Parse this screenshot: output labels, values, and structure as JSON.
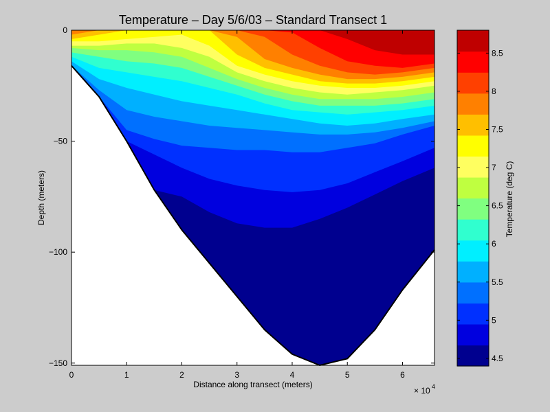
{
  "chart_data": {
    "type": "contour",
    "title": "Temperature – Day 5/6/03 – Standard Transect 1",
    "xlabel": "Distance along transect (meters)",
    "ylabel": "Depth (meters)",
    "x_multiplier_label": "× 10",
    "x_multiplier_exponent": "4",
    "x_tick_labels": [
      "0",
      "1",
      "2",
      "3",
      "4",
      "5",
      "6"
    ],
    "x_tick_values": [
      0,
      10000,
      20000,
      30000,
      40000,
      50000,
      60000
    ],
    "y_tick_labels": [
      "0",
      "−50",
      "−100",
      "−150"
    ],
    "y_tick_values": [
      0,
      -50,
      -100,
      -150
    ],
    "xlim": [
      0,
      65800
    ],
    "ylim": [
      -151,
      0
    ],
    "grid": false,
    "colorbar": {
      "label": "Temperature (deg C)",
      "range": [
        4.4,
        8.8
      ],
      "tick_labels": [
        "4.5",
        "5",
        "5.5",
        "6",
        "6.5",
        "7",
        "7.5",
        "8",
        "8.5"
      ],
      "tick_values": [
        4.5,
        5.0,
        5.5,
        6.0,
        6.5,
        7.0,
        7.5,
        8.0,
        8.5
      ],
      "levels": [
        {
          "min": 4.4,
          "max": 4.675,
          "color": "#00008f"
        },
        {
          "min": 4.675,
          "max": 4.95,
          "color": "#0000df"
        },
        {
          "min": 4.95,
          "max": 5.225,
          "color": "#0030ff"
        },
        {
          "min": 5.225,
          "max": 5.5,
          "color": "#0070ff"
        },
        {
          "min": 5.5,
          "max": 5.775,
          "color": "#00b0ff"
        },
        {
          "min": 5.775,
          "max": 6.05,
          "color": "#00efff"
        },
        {
          "min": 6.05,
          "max": 6.325,
          "color": "#30ffcf"
        },
        {
          "min": 6.325,
          "max": 6.6,
          "color": "#80ff80"
        },
        {
          "min": 6.6,
          "max": 6.875,
          "color": "#bfff40"
        },
        {
          "min": 6.875,
          "max": 7.15,
          "color": "#ffff60"
        },
        {
          "min": 7.15,
          "max": 7.425,
          "color": "#ffff00"
        },
        {
          "min": 7.425,
          "max": 7.7,
          "color": "#ffbf00"
        },
        {
          "min": 7.7,
          "max": 7.975,
          "color": "#ff8000"
        },
        {
          "min": 7.975,
          "max": 8.25,
          "color": "#ff4000"
        },
        {
          "min": 8.25,
          "max": 8.525,
          "color": "#ff0000"
        },
        {
          "min": 8.525,
          "max": 8.8,
          "color": "#bf0000"
        }
      ]
    },
    "bathymetry": {
      "x": [
        0,
        5000,
        10000,
        15000,
        20000,
        25000,
        30000,
        35000,
        40000,
        45000,
        50000,
        55000,
        60000,
        65800
      ],
      "depth": [
        -16,
        -30,
        -50,
        -72,
        -90,
        -105,
        -120,
        -135,
        -146,
        -151,
        -148,
        -135,
        -117,
        -99
      ]
    },
    "isotherm_depths_by_x": {
      "x": [
        0,
        5000,
        10000,
        15000,
        20000,
        25000,
        30000,
        35000,
        40000,
        45000,
        50000,
        55000,
        60000,
        65800
      ],
      "boundaries": [
        {
          "level": 8.525,
          "depth": [
            null,
            null,
            null,
            null,
            null,
            null,
            null,
            null,
            null,
            null,
            -4,
            -9,
            -11,
            -11
          ]
        },
        {
          "level": 8.25,
          "depth": [
            null,
            null,
            null,
            null,
            null,
            null,
            null,
            null,
            -1,
            -8,
            -14,
            -16,
            -17,
            -15
          ]
        },
        {
          "level": 7.975,
          "depth": [
            null,
            null,
            null,
            null,
            null,
            null,
            null,
            -3,
            -11,
            -16,
            -19,
            -20,
            -19,
            -17
          ]
        },
        {
          "level": 7.7,
          "depth": [
            -2,
            null,
            null,
            null,
            null,
            null,
            -3,
            -13,
            -17,
            -20,
            -22,
            -22,
            -21,
            -19
          ]
        },
        {
          "level": 7.425,
          "depth": [
            -4,
            -2,
            null,
            null,
            null,
            null,
            -11,
            -17,
            -20,
            -23,
            -24,
            -24,
            -23,
            -21
          ]
        },
        {
          "level": 7.15,
          "depth": [
            -5,
            -5,
            -4,
            -3,
            -2,
            -7,
            -16,
            -20,
            -23,
            -25,
            -26,
            -26,
            -25,
            -23
          ]
        },
        {
          "level": 6.875,
          "depth": [
            -7,
            -7,
            -6,
            -6,
            -8,
            -12,
            -19,
            -23,
            -26,
            -28,
            -29,
            -28,
            -27,
            -25
          ]
        },
        {
          "level": 6.6,
          "depth": [
            -8,
            -9,
            -9,
            -10,
            -12,
            -17,
            -22,
            -26,
            -29,
            -31,
            -31,
            -31,
            -30,
            -28
          ]
        },
        {
          "level": 6.325,
          "depth": [
            -10,
            -12,
            -14,
            -15,
            -17,
            -21,
            -25,
            -29,
            -32,
            -34,
            -34,
            -34,
            -33,
            -31
          ]
        },
        {
          "level": 6.05,
          "depth": [
            -12,
            -17,
            -19,
            -21,
            -23,
            -26,
            -29,
            -33,
            -36,
            -37,
            -38,
            -37,
            -36,
            -34
          ]
        },
        {
          "level": 5.775,
          "depth": [
            -14,
            -22,
            -26,
            -29,
            -32,
            -34,
            -36,
            -38,
            -40,
            -42,
            -43,
            -42,
            -40,
            -38
          ]
        },
        {
          "level": 5.5,
          "depth": [
            null,
            -27,
            -36,
            -39,
            -41,
            -43,
            -44,
            -45,
            -46,
            -47,
            -47,
            -46,
            -44,
            -41
          ]
        },
        {
          "level": 5.225,
          "depth": [
            null,
            null,
            -45,
            -49,
            -52,
            -53,
            -54,
            -54,
            -55,
            -55,
            -53,
            -51,
            -47,
            -43
          ]
        },
        {
          "level": 4.95,
          "depth": [
            null,
            null,
            null,
            -56,
            -62,
            -67,
            -70,
            -72,
            -73,
            -72,
            -69,
            -64,
            -59,
            -53
          ]
        },
        {
          "level": 4.675,
          "depth": [
            null,
            null,
            null,
            null,
            -75,
            -82,
            -87,
            -89,
            -89,
            -85,
            -80,
            -74,
            -68,
            -62
          ]
        },
        {
          "level": 4.4,
          "depth": [
            null,
            null,
            null,
            null,
            -88,
            -98,
            -103,
            -104,
            -101,
            -96,
            -92,
            -89,
            -86,
            -83
          ]
        }
      ]
    }
  }
}
